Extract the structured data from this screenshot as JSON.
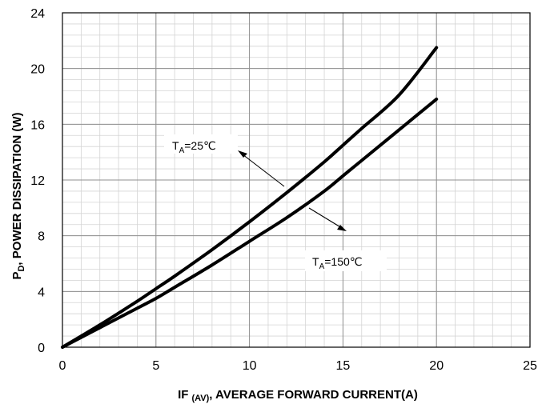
{
  "chart_data": {
    "type": "line",
    "title": "",
    "xlabel": {
      "main": "IF",
      "sub": "(AV)",
      "rest": ",   AVERAGE FORWARD CURRENT(A)"
    },
    "ylabel": {
      "main": "P",
      "sub": "D",
      "rest": ",   POWER DISSIPATION (W)"
    },
    "xlim": [
      0,
      25
    ],
    "ylim": [
      0,
      24
    ],
    "xticks": [
      0,
      5,
      10,
      15,
      20,
      25
    ],
    "yticks": [
      0,
      4,
      8,
      12,
      16,
      20,
      24
    ],
    "x_minor_step": 1,
    "y_minor_step": 0.8,
    "grid": true,
    "series": [
      {
        "name": {
          "main": "T",
          "sub": "A",
          "rest": "=25℃"
        },
        "x": [
          0,
          2,
          4,
          5,
          6,
          8,
          10,
          12,
          14,
          15,
          16,
          18,
          20
        ],
        "y": [
          0,
          1.6,
          3.3,
          4.2,
          5.1,
          7.0,
          9.0,
          11.1,
          13.3,
          14.5,
          15.7,
          18.1,
          21.5
        ]
      },
      {
        "name": {
          "main": "T",
          "sub": "A",
          "rest": "=150℃"
        },
        "x": [
          0,
          2,
          4,
          5,
          6,
          8,
          10,
          12,
          14,
          15,
          16,
          18,
          20
        ],
        "y": [
          0,
          1.4,
          2.8,
          3.5,
          4.3,
          5.9,
          7.6,
          9.3,
          11.2,
          12.3,
          13.4,
          15.6,
          17.8
        ]
      }
    ]
  }
}
